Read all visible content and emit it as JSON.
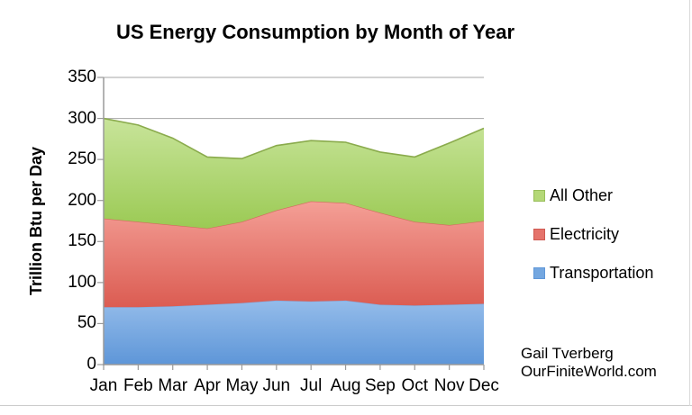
{
  "title": "US Energy Consumption by Month of Year",
  "y_axis": {
    "title": "Trillion Btu per Day",
    "tick_values": [
      0,
      50,
      100,
      150,
      200,
      250,
      300,
      350
    ]
  },
  "x_axis": {
    "months": [
      "Jan",
      "Feb",
      "Mar",
      "Apr",
      "May",
      "Jun",
      "Jul",
      "Aug",
      "Sep",
      "Oct",
      "Nov",
      "Dec"
    ]
  },
  "legend": {
    "items": [
      {
        "label": "All Other",
        "swatch": "#b4d877",
        "swatch_border": "#98be5a"
      },
      {
        "label": "Electricity",
        "swatch": "#e5736b",
        "swatch_border": "#cf5a52"
      },
      {
        "label": "Transportation",
        "swatch": "#74a7e0",
        "swatch_border": "#5f97d8"
      }
    ]
  },
  "attribution": {
    "line1": "Gail Tverberg",
    "line2": "OurFiniteWorld.com"
  },
  "chart_data": {
    "type": "area",
    "stacked": true,
    "title": "US Energy Consumption by Month of Year",
    "ylabel": "Trillion Btu per Day",
    "ylim": [
      0,
      350
    ],
    "y_tick_step": 50,
    "grid": "horizontal",
    "legend_position": "right",
    "categories": [
      "Jan",
      "Feb",
      "Mar",
      "Apr",
      "May",
      "Jun",
      "Jul",
      "Aug",
      "Sep",
      "Oct",
      "Nov",
      "Dec"
    ],
    "series": [
      {
        "name": "Transportation",
        "values": [
          70,
          70,
          71,
          73,
          75,
          78,
          77,
          78,
          73,
          72,
          73,
          74
        ],
        "fill_top": "#94bcea",
        "fill_bottom": "#5e96d8",
        "edge": "#7fabe2"
      },
      {
        "name": "Electricity",
        "values": [
          108,
          104,
          99,
          93,
          99,
          110,
          122,
          119,
          112,
          102,
          97,
          101
        ],
        "fill_top": "#f49f96",
        "fill_bottom": "#db5c52",
        "edge": "#d4695f"
      },
      {
        "name": "All Other",
        "values": [
          122,
          118,
          106,
          87,
          77,
          79,
          74,
          74,
          74,
          79,
          100,
          113
        ],
        "fill_top": "#c8e49a",
        "fill_bottom": "#9bca54",
        "edge": "#8aab4c"
      }
    ],
    "stacked_totals": [
      300,
      292,
      276,
      253,
      251,
      267,
      273,
      271,
      259,
      253,
      270,
      288
    ]
  },
  "colors": {
    "gridline": "#a6a6a6",
    "axis": "#9a9a9a",
    "text": "#000000",
    "background": "#ffffff"
  }
}
